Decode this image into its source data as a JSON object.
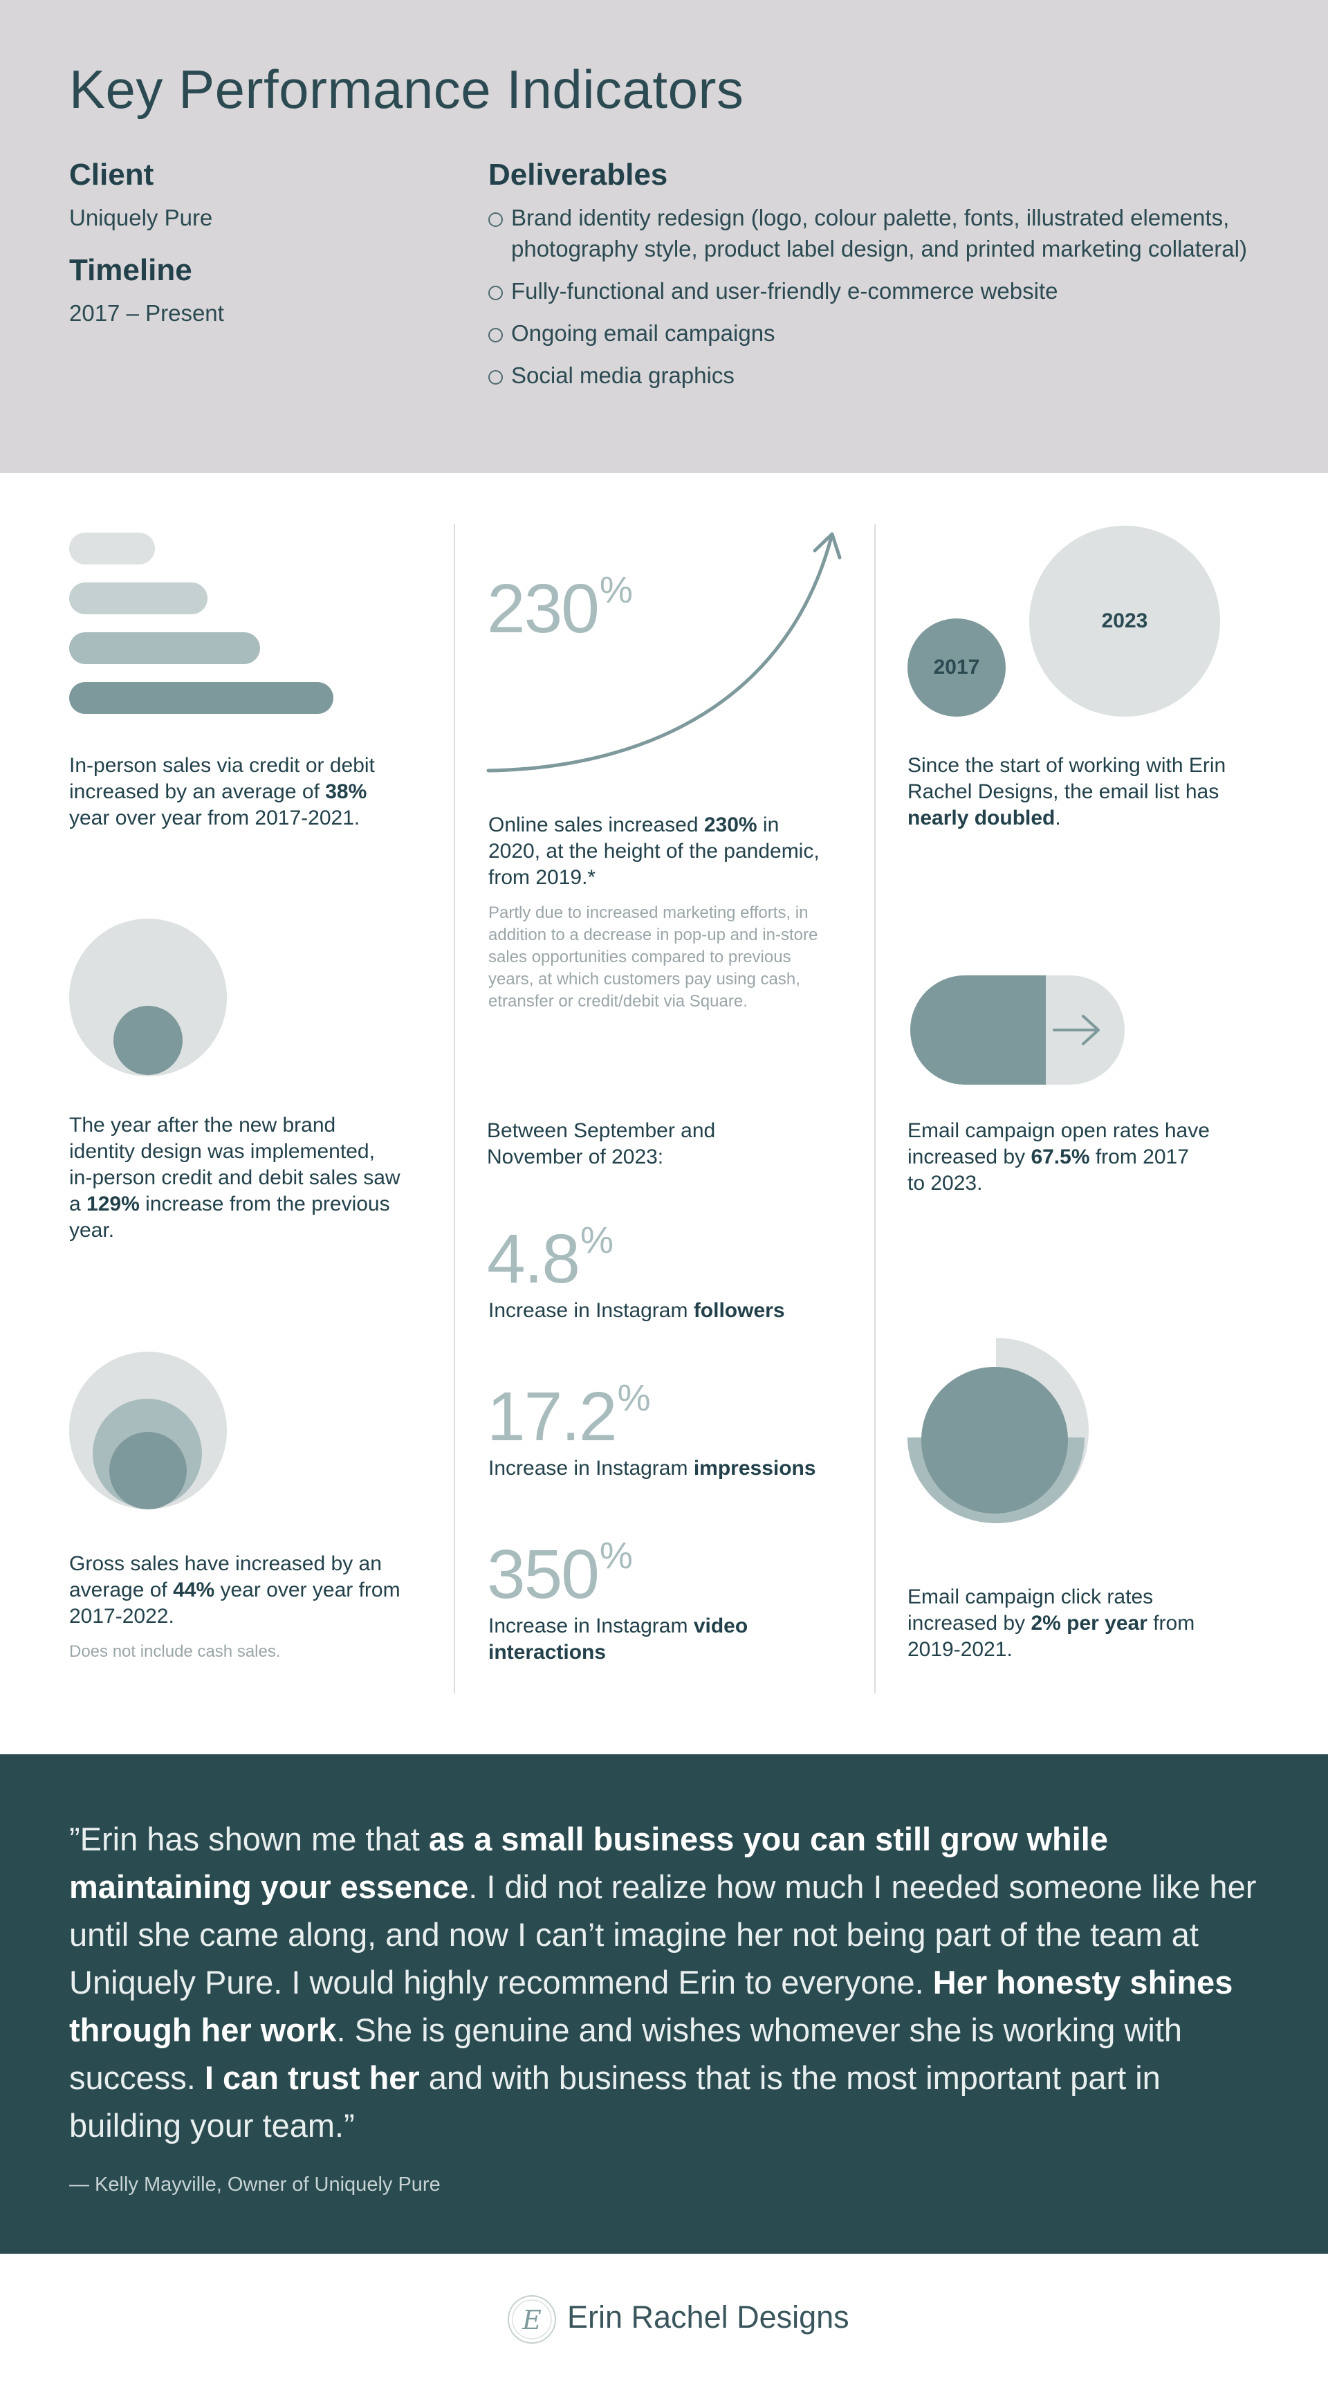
{
  "header": {
    "title": "Key Performance Indicators",
    "client_label": "Client",
    "client_value": "Uniquely Pure",
    "timeline_label": "Timeline",
    "timeline_value": "2017 – Present",
    "deliverables_label": "Deliverables",
    "deliverables": [
      "Brand identity redesign (logo, colour palette, fonts, illustrated elements, photography style, product label design, and printed marketing collateral)",
      "Fully-functional and user-friendly e-commerce website",
      "Ongoing email campaigns",
      "Social media graphics"
    ]
  },
  "stats": {
    "credit_debit": {
      "pre": "In-person sales via credit or debit increased by an average of ",
      "bold": "38%",
      "post": " year over year from 2017-2021."
    },
    "brand_year": {
      "pre": "The year after the new brand identity design was implemented, in-person credit and debit sales saw a ",
      "bold": "129%",
      "post": " increase from the previous year."
    },
    "gross": {
      "pre": "Gross sales have increased by an average of ",
      "bold": "44%",
      "post": " year over year from 2017-2022.",
      "note": "Does not include cash sales."
    },
    "online": {
      "number": "230",
      "unit": "%",
      "pre": "Online sales increased ",
      "bold": "230%",
      "post": " in 2020, at the height of the pandemic, from 2019.*",
      "note": "Partly due to increased marketing efforts, in addition to a decrease in pop-up and in-store sales opportunities compared to previous years, at which customers pay using cash, etransfer or credit/debit via Square."
    },
    "period": "Between September and November of 2023:",
    "instagram": [
      {
        "number": "4.8",
        "unit": "%",
        "pre": "Increase in Instagram ",
        "bold": "followers"
      },
      {
        "number": "17.2",
        "unit": "%",
        "pre": "Increase in Instagram ",
        "bold": "impressions"
      },
      {
        "number": "350",
        "unit": "%",
        "pre": "Increase in Instagram ",
        "bold": "video interactions"
      }
    ],
    "email_list": {
      "year_a": "2017",
      "year_b": "2023",
      "pre": "Since the start of working with Erin Rachel Designs, the email list has ",
      "bold": "nearly doubled",
      "post": "."
    },
    "open_rates": {
      "pre": "Email campaign open rates have increased by ",
      "bold": "67.5%",
      "post": " from 2017 to 2023."
    },
    "click_rates": {
      "pre": "Email campaign click rates increased by ",
      "bold": "2% per year",
      "post": " from 2019-2021."
    }
  },
  "testimonial": {
    "parts": [
      {
        "t": "”Erin has shown me that ",
        "b": false
      },
      {
        "t": "as a small business you can still grow while maintaining your essence",
        "b": true
      },
      {
        "t": ". I did not realize how much I needed someone like her until she came along, and now I can’t imagine her not being part of the team at Uniquely Pure. I would highly recommend Erin to everyone. ",
        "b": false
      },
      {
        "t": "Her honesty shines through her work",
        "b": true
      },
      {
        "t": ". She is genuine and wishes whomever she is working with success. ",
        "b": false
      },
      {
        "t": "I can trust her",
        "b": true
      },
      {
        "t": " and with business that is the most important part in building your team.”",
        "b": false
      }
    ],
    "author": "— Kelly Mayville, Owner of Uniquely Pure"
  },
  "footer": {
    "logo_text": "Erin Rachel Designs",
    "logo_mark": "E"
  },
  "colors": {
    "header_bg": "#d8d6d8",
    "dark_teal": "#2a4b50",
    "teal": "#7e999b",
    "mid_teal": "#a9bcbd",
    "light_grey": "#dde1e1"
  }
}
